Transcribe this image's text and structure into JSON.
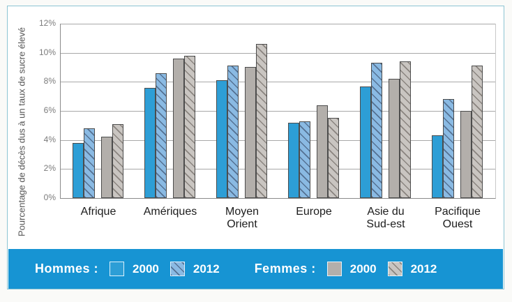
{
  "chart_data": {
    "type": "bar",
    "title": "",
    "ylabel": "Pourcentage de décès dus à un taux de sucre élevé",
    "xlabel": "",
    "categories": [
      "Afrique",
      "Amériques",
      "Moyen Orient",
      "Europe",
      "Asie du Sud-est",
      "Pacifique Ouest"
    ],
    "categories_display": [
      [
        "Afrique"
      ],
      [
        "Amériques"
      ],
      [
        "Moyen",
        "Orient"
      ],
      [
        "Europe"
      ],
      [
        "Asie du",
        "Sud-est"
      ],
      [
        "Pacifique",
        "Ouest"
      ]
    ],
    "series": [
      {
        "name": "Hommes 2000",
        "style": "blue-solid",
        "values": [
          3.8,
          7.6,
          8.1,
          5.2,
          7.7,
          4.3
        ]
      },
      {
        "name": "Hommes 2012",
        "style": "blue-hatched",
        "values": [
          4.8,
          8.6,
          9.1,
          5.3,
          9.3,
          6.8
        ]
      },
      {
        "name": "Femmes 2000",
        "style": "gray-solid",
        "values": [
          4.2,
          9.6,
          9.0,
          6.4,
          8.2,
          6.0
        ]
      },
      {
        "name": "Femmes 2012",
        "style": "gray-hatched",
        "values": [
          5.1,
          9.8,
          10.6,
          5.5,
          9.4,
          9.1
        ]
      }
    ],
    "ylim": [
      0,
      12
    ],
    "ytick_labels_top_down": [
      "12%",
      "10%",
      "8%",
      "6%",
      "4%",
      "2%",
      "0%"
    ],
    "grid": true,
    "legend_position": "bottom"
  },
  "legend": {
    "hommes_label": "Hommes :",
    "hommes_2000": "2000",
    "hommes_2012": "2012",
    "femmes_label": "Femmes  :",
    "femmes_2000": "2000",
    "femmes_2012": "2012"
  },
  "colors": {
    "legend_band": "#1794d3",
    "hommes_2000_bar": "#2d9ed6",
    "hommes_2012_bar": "#8abae3",
    "femmes_2000_bar": "#b3afab",
    "femmes_2012_bar": "#c9c5c1",
    "panel_border": "#8cc4d3",
    "bar_outline": "#4c4c4c"
  }
}
